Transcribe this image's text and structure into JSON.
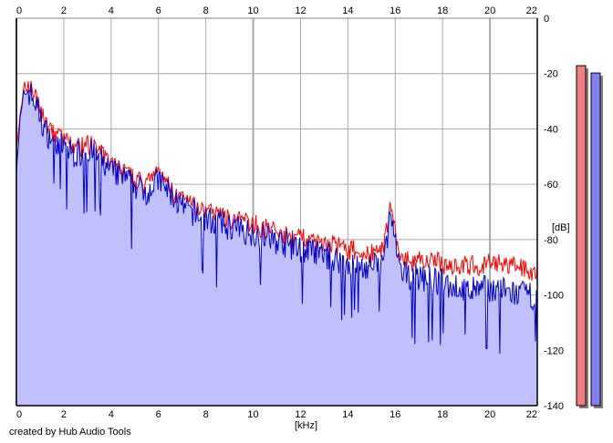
{
  "credit": "created by Hub Audio Tools",
  "chart_data": {
    "type": "area",
    "xlabel": "[kHz]",
    "ylabel": "[dB]",
    "xlim": [
      0,
      22
    ],
    "ylim": [
      -140,
      0
    ],
    "x_ticks": [
      0,
      2,
      4,
      6,
      8,
      10,
      12,
      14,
      16,
      18,
      20,
      22
    ],
    "y_ticks": [
      0,
      -20,
      -40,
      -60,
      -80,
      -100,
      -120,
      -140
    ],
    "grid": true,
    "colors": {
      "fill": "#c0c0ff",
      "blue_channel": "#0000cc",
      "red_channel": "#ff0000",
      "meter_red": "#f08080",
      "meter_blue": "#8080f0",
      "grid": "#a8a8a8"
    },
    "series": [
      {
        "x": [
          0,
          0.2,
          0.4,
          0.6,
          0.8,
          1.0,
          1.2,
          1.5,
          2.0,
          2.5,
          3.0,
          3.5,
          4.0,
          4.5,
          5.0,
          5.5,
          6.0,
          6.5,
          7.0,
          7.5,
          8.0,
          9.0,
          10.0,
          11.0,
          12.0,
          13.0,
          14.0,
          14.8,
          15.5,
          15.8,
          16.2,
          17.0,
          18.0,
          19.0,
          20.0,
          21.0,
          22.0
        ],
        "values": [
          -50,
          -35,
          -25,
          -27,
          -30,
          -35,
          -40,
          -43,
          -46,
          -49,
          -47,
          -50,
          -55,
          -57,
          -60,
          -62,
          -58,
          -63,
          -68,
          -70,
          -72,
          -75,
          -77,
          -80,
          -83,
          -85,
          -88,
          -90,
          -88,
          -70,
          -92,
          -93,
          -95,
          -98,
          -97,
          -99,
          -100
        ]
      },
      {
        "x": [
          0,
          0.2,
          0.4,
          0.6,
          0.8,
          1.0,
          1.2,
          1.5,
          2.0,
          2.5,
          3.0,
          3.5,
          4.0,
          4.5,
          5.0,
          5.5,
          6.0,
          6.5,
          7.0,
          7.5,
          8.0,
          9.0,
          10.0,
          11.0,
          12.0,
          13.0,
          14.0,
          14.8,
          15.5,
          15.8,
          16.2,
          17.0,
          18.0,
          19.0,
          20.0,
          21.0,
          22.0
        ],
        "values": [
          -50,
          -34,
          -24,
          -26,
          -29,
          -34,
          -39,
          -42,
          -45,
          -48,
          -46,
          -49,
          -54,
          -56,
          -59,
          -61,
          -57,
          -62,
          -67,
          -69,
          -71,
          -73,
          -75,
          -78,
          -80,
          -82,
          -84,
          -86,
          -85,
          -67,
          -88,
          -88,
          -89,
          -90,
          -89,
          -90,
          -92
        ]
      }
    ],
    "meters": [
      {
        "color": "#f08080",
        "level": 0.93
      },
      {
        "color": "#8080f0",
        "level": 0.91
      }
    ]
  }
}
